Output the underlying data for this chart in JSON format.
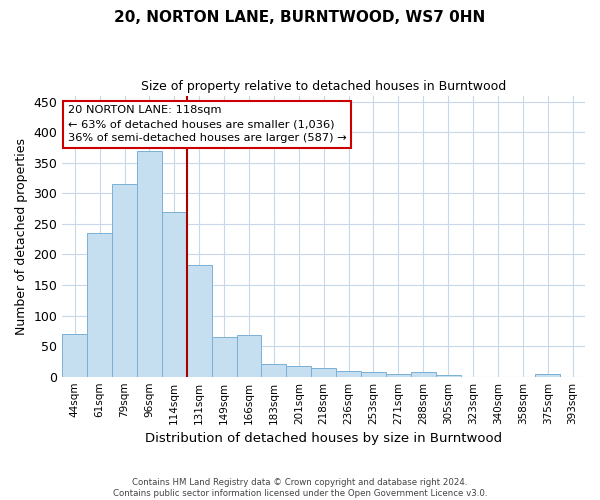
{
  "title": "20, NORTON LANE, BURNTWOOD, WS7 0HN",
  "subtitle": "Size of property relative to detached houses in Burntwood",
  "xlabel": "Distribution of detached houses by size in Burntwood",
  "ylabel": "Number of detached properties",
  "footer": "Contains HM Land Registry data © Crown copyright and database right 2024.\nContains public sector information licensed under the Open Government Licence v3.0.",
  "bin_labels": [
    "44sqm",
    "61sqm",
    "79sqm",
    "96sqm",
    "114sqm",
    "131sqm",
    "149sqm",
    "166sqm",
    "183sqm",
    "201sqm",
    "218sqm",
    "236sqm",
    "253sqm",
    "271sqm",
    "288sqm",
    "305sqm",
    "323sqm",
    "340sqm",
    "358sqm",
    "375sqm",
    "393sqm"
  ],
  "bar_heights": [
    70,
    235,
    315,
    370,
    270,
    183,
    65,
    68,
    20,
    18,
    15,
    10,
    7,
    5,
    8,
    2,
    0,
    0,
    0,
    4,
    0
  ],
  "bar_color": "#c5dff0",
  "bar_edge_color": "#7ab0d4",
  "vline_color": "#aa0000",
  "annotation_text": "20 NORTON LANE: 118sqm\n← 63% of detached houses are smaller (1,036)\n36% of semi-detached houses are larger (587) →",
  "annotation_box_color": "#cc0000",
  "ylim": [
    0,
    460
  ],
  "yticks": [
    0,
    50,
    100,
    150,
    200,
    250,
    300,
    350,
    400,
    450
  ],
  "background_color": "#ffffff",
  "grid_color": "#c8d8e8"
}
